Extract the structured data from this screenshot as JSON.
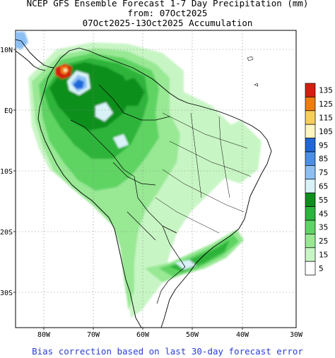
{
  "header": {
    "title_line1": "NCEP GFS Ensemble Forecast 1-7 Day Precipitation (mm)",
    "title_line2": "from: 07Oct2025",
    "title_line3": "07Oct2025-13Oct2025 Accumulation"
  },
  "axes": {
    "lat_labels": [
      "10N",
      "EQ",
      "10S",
      "20S",
      "30S"
    ],
    "lon_labels": [
      "80W",
      "70W",
      "60W",
      "50W",
      "40W",
      "30W"
    ],
    "grid": true
  },
  "legend": {
    "labels": [
      "135",
      "125",
      "115",
      "105",
      "95",
      "85",
      "75",
      "65",
      "55",
      "45",
      "35",
      "25",
      "15",
      "5"
    ],
    "colors": [
      "#d21f0f",
      "#f07d10",
      "#f8ce5a",
      "#fdf6c0",
      "#1f67d8",
      "#4a8fe8",
      "#8cc0f5",
      "#d8f2f8",
      "#0e8f1d",
      "#2db43b",
      "#5fd464",
      "#98e894",
      "#c8f5c4",
      "#ffffff"
    ]
  },
  "footer": {
    "note": "Bias correction based on last 30-day forecast error"
  }
}
